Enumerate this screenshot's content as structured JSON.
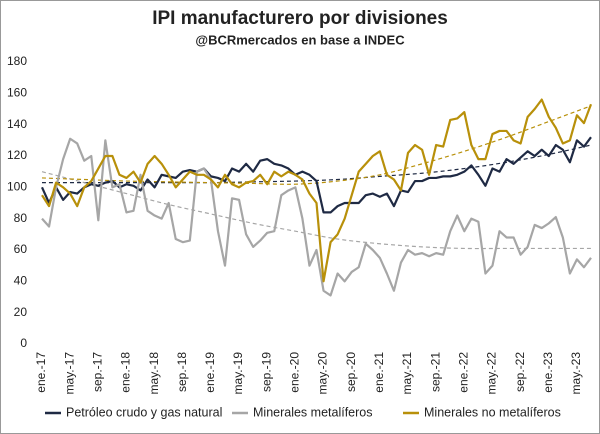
{
  "chart_data": {
    "type": "line",
    "title": "IPI manufacturero por divisiones",
    "subtitle": "@BCRmercados en base a INDEC",
    "categories": [
      "ene.-17",
      null,
      null,
      null,
      "may.-17",
      null,
      null,
      null,
      "sep.-17",
      null,
      null,
      null,
      "ene.-18",
      null,
      null,
      null,
      "may.-18",
      null,
      null,
      null,
      "sep.-18",
      null,
      null,
      null,
      "ene.-19",
      null,
      null,
      null,
      "may.-19",
      null,
      null,
      null,
      "sep.-19",
      null,
      null,
      null,
      "ene.-20",
      null,
      null,
      null,
      "may.-20",
      null,
      null,
      null,
      "sep.-20",
      null,
      null,
      null,
      "ene.-21",
      null,
      null,
      null,
      "may.-21",
      null,
      null,
      null,
      "sep.-21",
      null,
      null,
      null,
      "ene.-22",
      null,
      null,
      null,
      "may.-22",
      null,
      null,
      null,
      "sep.-22",
      null,
      null,
      null,
      "ene.-23",
      null,
      null,
      null,
      "may.-23",
      null,
      null
    ],
    "ylim": [
      0,
      180
    ],
    "yticks": [
      0,
      20,
      40,
      60,
      80,
      100,
      120,
      140,
      160,
      180
    ],
    "grid": false,
    "legend": "bottom",
    "series": [
      {
        "name": "Petróleo crudo y gas natural",
        "color": "#1f2a44",
        "values": [
          100,
          90,
          100,
          92,
          97,
          96,
          100,
          102,
          101,
          103,
          104,
          100,
          102,
          101,
          98,
          105,
          100,
          108,
          107,
          106,
          110,
          111,
          110,
          112,
          107,
          106,
          104,
          112,
          110,
          115,
          110,
          117,
          118,
          115,
          114,
          112,
          108,
          110,
          108,
          104,
          84,
          84,
          88,
          90,
          90,
          90,
          95,
          96,
          94,
          96,
          88,
          98,
          97,
          104,
          104,
          106,
          106,
          107,
          107,
          108,
          110,
          114,
          108,
          101,
          112,
          110,
          118,
          115,
          119,
          123,
          120,
          124,
          120,
          127,
          124,
          116,
          130,
          126,
          132
        ]
      },
      {
        "name": "Minerales metalíferos",
        "color": "#a6a6a6",
        "values": [
          80,
          75,
          100,
          118,
          131,
          128,
          117,
          120,
          79,
          130,
          100,
          102,
          84,
          85,
          108,
          85,
          82,
          80,
          90,
          67,
          65,
          66,
          110,
          112,
          105,
          72,
          50,
          93,
          92,
          70,
          62,
          66,
          71,
          72,
          95,
          98,
          100,
          80,
          50,
          60,
          34,
          31,
          45,
          40,
          46,
          49,
          64,
          60,
          55,
          45,
          34,
          52,
          60,
          57,
          58,
          56,
          58,
          57,
          72,
          82,
          72,
          80,
          78,
          45,
          50,
          72,
          68,
          68,
          57,
          62,
          76,
          74,
          77,
          81,
          68,
          45,
          54,
          49,
          55
        ]
      },
      {
        "name": "Minerales no metalíferos",
        "color": "#b8900a",
        "values": [
          95,
          88,
          103,
          100,
          96,
          88,
          100,
          104,
          112,
          120,
          120,
          108,
          106,
          110,
          103,
          115,
          120,
          115,
          108,
          100,
          105,
          110,
          108,
          108,
          105,
          100,
          108,
          102,
          100,
          103,
          104,
          108,
          102,
          110,
          107,
          110,
          108,
          105,
          96,
          90,
          40,
          65,
          70,
          80,
          95,
          110,
          115,
          120,
          123,
          108,
          105,
          98,
          122,
          127,
          124,
          108,
          127,
          126,
          143,
          144,
          148,
          127,
          118,
          118,
          134,
          136,
          136,
          130,
          128,
          145,
          150,
          156,
          145,
          138,
          128,
          130,
          146,
          141,
          153
        ]
      }
    ],
    "trend_index": [
      0,
      6,
      12,
      18,
      24,
      30,
      36,
      42,
      48,
      54,
      60,
      66,
      72,
      78
    ],
    "trends": [
      {
        "color": "#1f2a44",
        "values": [
          103,
          103,
          103,
          103,
          103,
          103.5,
          104,
          105,
          107,
          109,
          112,
          116,
          121,
          127
        ]
      },
      {
        "color": "#a6a6a6",
        "values": [
          110,
          103,
          96,
          89,
          83,
          77,
          72,
          67,
          64,
          62,
          61,
          61,
          61,
          61
        ]
      },
      {
        "color": "#b8900a",
        "values": [
          106,
          105,
          104,
          103.5,
          103,
          102.5,
          102,
          104,
          108,
          115,
          123,
          132,
          142,
          152
        ]
      }
    ]
  }
}
